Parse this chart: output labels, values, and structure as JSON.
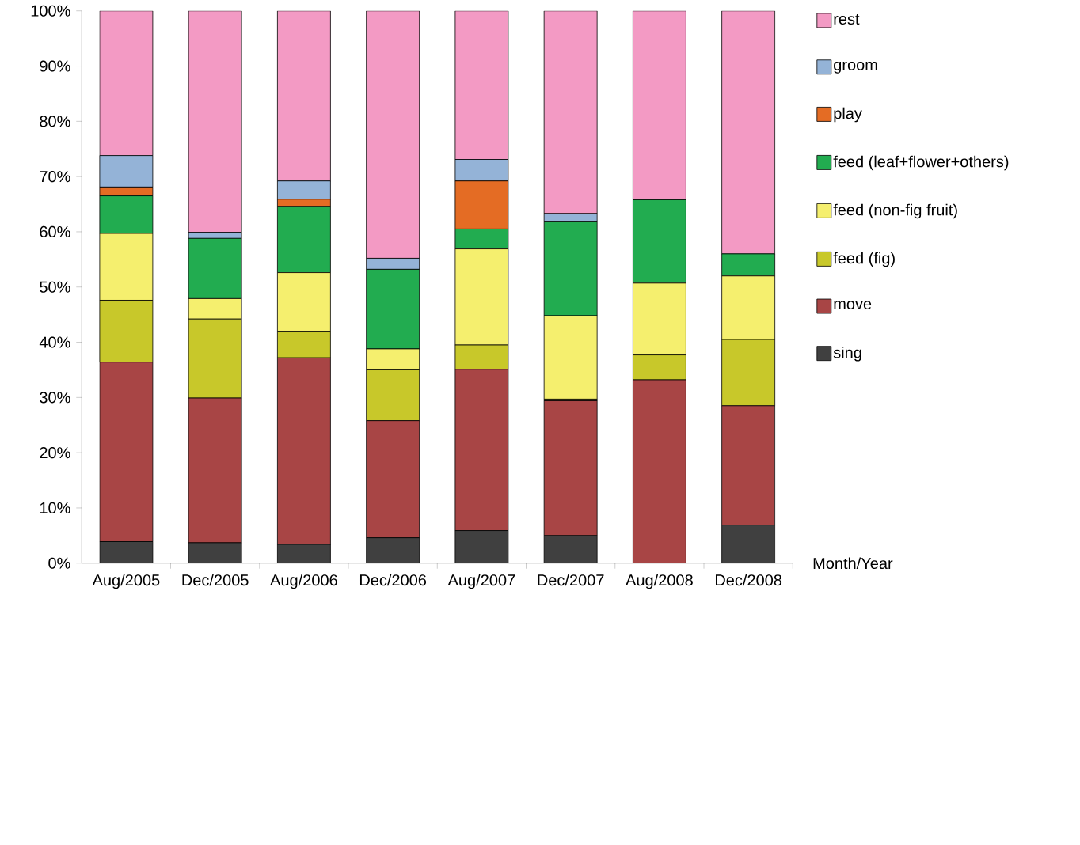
{
  "chart_data": {
    "type": "bar",
    "stacked": true,
    "xlabel": "Month/Year",
    "categories": [
      "Aug/2005",
      "Dec/2005",
      "Aug/2006",
      "Dec/2006",
      "Aug/2007",
      "Dec/2007",
      "Aug/2008",
      "Dec/2008"
    ],
    "series": [
      {
        "name": "sing",
        "color": "#404040",
        "values": [
          3.9,
          3.7,
          3.4,
          4.6,
          5.9,
          5.0,
          0,
          6.9
        ]
      },
      {
        "name": "move",
        "color": "#a84545",
        "values": [
          32.5,
          26.2,
          33.8,
          21.2,
          29.2,
          24.4,
          33.2,
          21.6
        ]
      },
      {
        "name": "feed (fig)",
        "color": "#c8c82a",
        "values": [
          11.2,
          14.3,
          4.8,
          9.2,
          4.4,
          0.3,
          4.5,
          12.0
        ]
      },
      {
        "name": "feed (non-fig fruit)",
        "color": "#f5ef6e",
        "values": [
          12.1,
          3.7,
          10.6,
          3.8,
          17.4,
          15.1,
          13.0,
          11.5
        ]
      },
      {
        "name": "feed (leaf+flower+others)",
        "color": "#22ac50",
        "values": [
          6.8,
          10.9,
          12.0,
          14.4,
          3.6,
          17.1,
          15.1,
          4.0
        ]
      },
      {
        "name": "play",
        "color": "#e46c24",
        "values": [
          1.6,
          0,
          1.3,
          0,
          8.7,
          0,
          0,
          0
        ]
      },
      {
        "name": "groom",
        "color": "#94b3d7",
        "values": [
          5.7,
          1.1,
          3.3,
          2.0,
          3.9,
          1.4,
          0,
          0
        ]
      },
      {
        "name": "rest",
        "color": "#f39ac4",
        "values": [
          26.2,
          40.1,
          30.8,
          44.8,
          26.9,
          36.7,
          34.2,
          44.0
        ]
      }
    ],
    "ylim": [
      0,
      100
    ],
    "yticks": [
      {
        "value": 0,
        "label": "0%"
      },
      {
        "value": 10,
        "label": "10%"
      },
      {
        "value": 20,
        "label": "20%"
      },
      {
        "value": 30,
        "label": "30%"
      },
      {
        "value": 40,
        "label": "40%"
      },
      {
        "value": 50,
        "label": "50%"
      },
      {
        "value": 60,
        "label": "60%"
      },
      {
        "value": 70,
        "label": "70%"
      },
      {
        "value": 80,
        "label": "80%"
      },
      {
        "value": 90,
        "label": "90%"
      },
      {
        "value": 100,
        "label": "100%"
      }
    ],
    "grid": false,
    "legend": "right"
  }
}
